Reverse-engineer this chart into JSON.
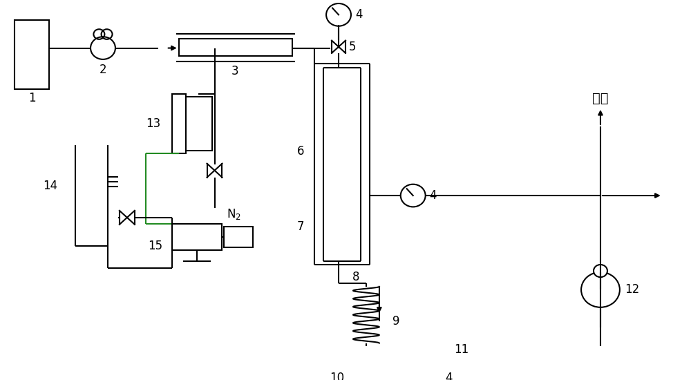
{
  "bg_color": "#ffffff",
  "line_color": "#000000",
  "green_color": "#228B22",
  "fangkong": "放空"
}
